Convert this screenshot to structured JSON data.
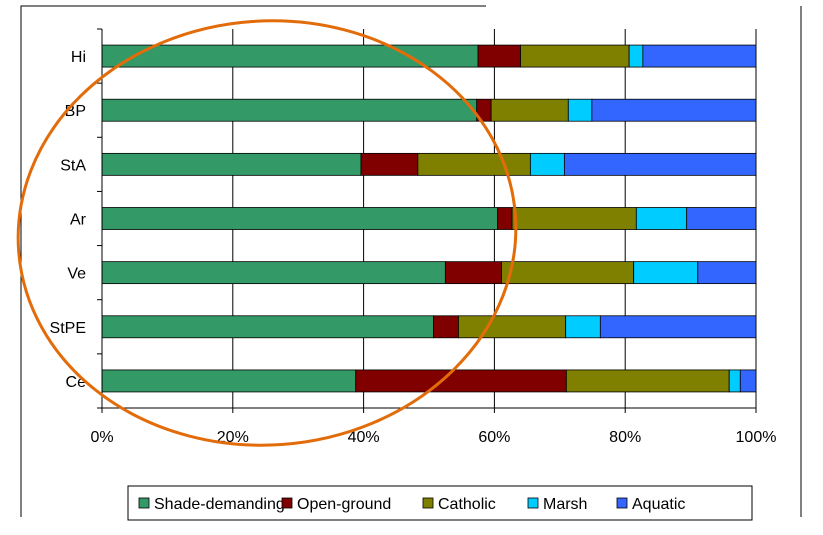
{
  "chart_data": {
    "type": "bar",
    "orientation": "horizontal",
    "stacked": "percent",
    "categories": [
      "Hi",
      "BP",
      "StA",
      "Ar",
      "Ve",
      "StPE",
      "Ce"
    ],
    "x_ticks": [
      "0%",
      "20%",
      "40%",
      "60%",
      "80%",
      "100%"
    ],
    "xlim": [
      0,
      100
    ],
    "grid": "vertical",
    "legend_position": "bottom",
    "series": [
      {
        "name": "Shade-demanding",
        "color": "#339966",
        "values": [
          57.5,
          57.3,
          39.6,
          60.5,
          52.5,
          50.7,
          38.8
        ]
      },
      {
        "name": "Open-ground",
        "color": "#800000",
        "values": [
          6.5,
          2.2,
          8.7,
          2.2,
          8.6,
          3.8,
          32.2
        ]
      },
      {
        "name": "Catholic",
        "color": "#808000",
        "values": [
          16.6,
          11.8,
          17.2,
          19.0,
          20.2,
          16.4,
          24.9
        ]
      },
      {
        "name": "Marsh",
        "color": "#00CCFF",
        "values": [
          2.1,
          3.6,
          5.2,
          7.7,
          9.8,
          5.3,
          1.7
        ]
      },
      {
        "name": "Aquatic",
        "color": "#3366FF",
        "values": [
          17.3,
          25.1,
          29.3,
          10.6,
          8.9,
          23.8,
          2.4
        ]
      }
    ]
  },
  "annotation": {
    "shape": "ellipse",
    "color": "#E36C0A"
  }
}
